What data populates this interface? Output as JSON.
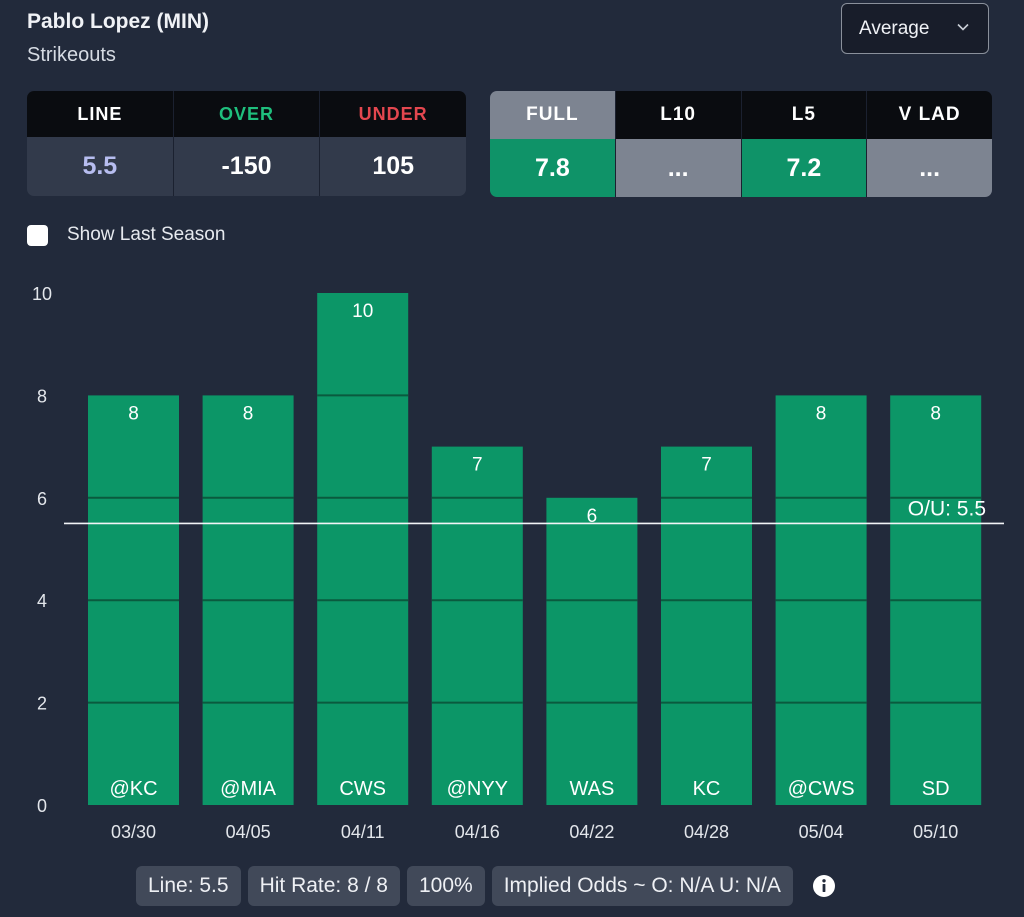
{
  "header": {
    "player": "Pablo Lopez (MIN)",
    "stat": "Strikeouts",
    "dropdown_value": "Average"
  },
  "odds": {
    "headers": [
      "LINE",
      "OVER",
      "UNDER"
    ],
    "header_colors": [
      "#ffffff",
      "#1fbf7d",
      "#e4474f"
    ],
    "values": [
      "5.5",
      "-150",
      "105"
    ],
    "value_colors": [
      "#b7bdf0",
      "#ffffff",
      "#ffffff"
    ]
  },
  "averages": [
    {
      "label": "FULL",
      "value": "7.8"
    },
    {
      "label": "L10",
      "value": "..."
    },
    {
      "label": "L5",
      "value": "7.2"
    },
    {
      "label": "V LAD",
      "value": "..."
    }
  ],
  "toggle": {
    "label": "Show Last Season"
  },
  "chart_data": {
    "type": "bar",
    "categories": [
      "03/30",
      "04/05",
      "04/11",
      "04/16",
      "04/22",
      "04/28",
      "05/04",
      "05/10"
    ],
    "opponents": [
      "@KC",
      "@MIA",
      "CWS",
      "@NYY",
      "WAS",
      "KC",
      "@CWS",
      "SD"
    ],
    "values": [
      8,
      8,
      10,
      7,
      6,
      7,
      8,
      8
    ],
    "ylim": [
      0,
      10
    ],
    "yticks": [
      0,
      2,
      4,
      6,
      8,
      10
    ],
    "ou_line": 5.5,
    "ou_label": "O/U: 5.5",
    "bar_color": "#0c9667",
    "grid": true
  },
  "footer": {
    "line": "Line: 5.5",
    "hit_rate": "Hit Rate: 8 / 8",
    "percent": "100%",
    "implied": "Implied Odds ~ O: N/A U: N/A"
  }
}
